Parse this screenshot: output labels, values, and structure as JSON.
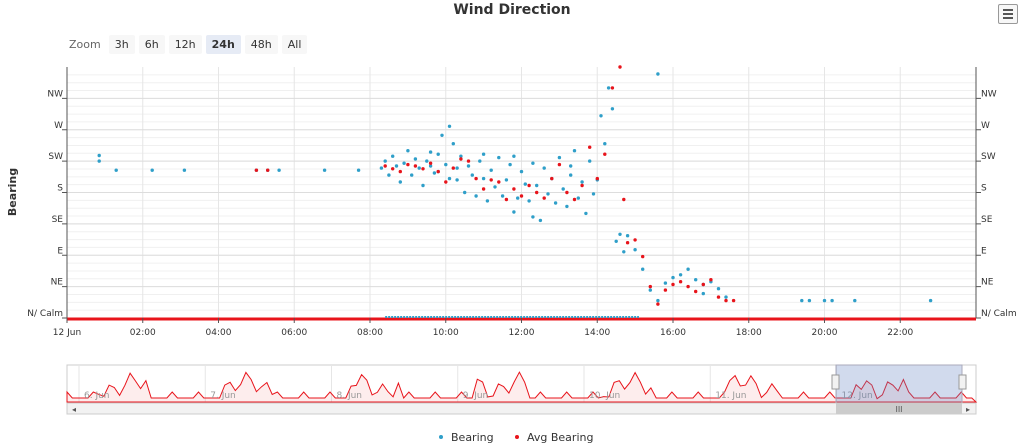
{
  "title": "Wind Direction",
  "menu_icon": "hamburger-menu-icon",
  "zoom": {
    "label": "Zoom",
    "buttons": [
      "3h",
      "6h",
      "12h",
      "24h",
      "48h",
      "All"
    ],
    "active": "24h"
  },
  "navigator": {
    "date_labels": [
      "6. Jun",
      "7. Jun",
      "8. Jun",
      "9. Jun",
      "10. Jun",
      "11. Jun",
      "12. Jun"
    ],
    "window": [
      "12 Jun 00:00",
      "12 Jun 24:00"
    ]
  },
  "colors": {
    "bearing": "#2f9fc9",
    "avg": "#e8141b",
    "plot_line": "#e8141b"
  },
  "chart_data": {
    "type": "scatter",
    "title": "Wind Direction",
    "ylabel": "Bearing",
    "xlabel": "",
    "x_unit": "hours",
    "x_range": [
      0,
      24
    ],
    "ylim": [
      0,
      360
    ],
    "x_ticks": [
      {
        "v": 0,
        "label": "12 Jun"
      },
      {
        "v": 2,
        "label": "02:00"
      },
      {
        "v": 4,
        "label": "04:00"
      },
      {
        "v": 6,
        "label": "06:00"
      },
      {
        "v": 8,
        "label": "08:00"
      },
      {
        "v": 10,
        "label": "10:00"
      },
      {
        "v": 12,
        "label": "12:00"
      },
      {
        "v": 14,
        "label": "14:00"
      },
      {
        "v": 16,
        "label": "16:00"
      },
      {
        "v": 18,
        "label": "18:00"
      },
      {
        "v": 20,
        "label": "20:00"
      },
      {
        "v": 22,
        "label": "22:00"
      }
    ],
    "y_ticks": [
      {
        "v": 0,
        "label": "N/ Calm"
      },
      {
        "v": 45,
        "label": "NE"
      },
      {
        "v": 90,
        "label": "E"
      },
      {
        "v": 135,
        "label": "SE"
      },
      {
        "v": 180,
        "label": "S"
      },
      {
        "v": 225,
        "label": "SW"
      },
      {
        "v": 270,
        "label": "W"
      },
      {
        "v": 315,
        "label": "NW"
      }
    ],
    "legend": {
      "position": "bottom-center"
    },
    "series": [
      {
        "name": "Bearing",
        "points": [
          [
            0.85,
            233
          ],
          [
            0.85,
            225
          ],
          [
            1.3,
            212
          ],
          [
            2.25,
            212
          ],
          [
            3.1,
            212
          ],
          [
            5.0,
            212
          ],
          [
            5.3,
            212
          ],
          [
            5.6,
            212
          ],
          [
            6.8,
            212
          ],
          [
            7.7,
            212
          ],
          [
            8.3,
            215
          ],
          [
            8.4,
            225
          ],
          [
            8.5,
            205
          ],
          [
            8.6,
            232
          ],
          [
            8.7,
            218
          ],
          [
            8.8,
            195
          ],
          [
            8.9,
            222
          ],
          [
            9.0,
            240
          ],
          [
            9.1,
            205
          ],
          [
            9.2,
            228
          ],
          [
            9.3,
            215
          ],
          [
            9.4,
            190
          ],
          [
            9.5,
            225
          ],
          [
            9.6,
            218
          ],
          [
            9.7,
            208
          ],
          [
            9.8,
            235
          ],
          [
            9.9,
            262
          ],
          [
            10.0,
            220
          ],
          [
            10.1,
            200
          ],
          [
            10.2,
            250
          ],
          [
            10.3,
            215
          ],
          [
            10.4,
            232
          ],
          [
            10.5,
            180
          ],
          [
            10.6,
            218
          ],
          [
            10.7,
            205
          ],
          [
            10.8,
            175
          ],
          [
            10.9,
            225
          ],
          [
            11.0,
            200
          ],
          [
            11.1,
            168
          ],
          [
            11.2,
            212
          ],
          [
            11.3,
            188
          ],
          [
            11.4,
            230
          ],
          [
            11.5,
            175
          ],
          [
            11.6,
            198
          ],
          [
            11.7,
            220
          ],
          [
            11.8,
            152
          ],
          [
            11.9,
            172
          ],
          [
            12.0,
            210
          ],
          [
            12.1,
            192
          ],
          [
            12.2,
            168
          ],
          [
            12.3,
            222
          ],
          [
            12.4,
            190
          ],
          [
            12.5,
            140
          ],
          [
            12.6,
            215
          ],
          [
            12.7,
            178
          ],
          [
            12.8,
            200
          ],
          [
            12.9,
            165
          ],
          [
            13.0,
            230
          ],
          [
            13.1,
            185
          ],
          [
            13.2,
            160
          ],
          [
            13.3,
            205
          ],
          [
            13.4,
            240
          ],
          [
            13.5,
            172
          ],
          [
            13.6,
            195
          ],
          [
            13.7,
            150
          ],
          [
            13.8,
            225
          ],
          [
            13.9,
            178
          ],
          [
            14.0,
            198
          ],
          [
            14.1,
            290
          ],
          [
            14.2,
            250
          ],
          [
            14.3,
            330
          ],
          [
            14.4,
            300
          ],
          [
            14.5,
            110
          ],
          [
            14.6,
            120
          ],
          [
            14.7,
            95
          ],
          [
            14.8,
            118
          ],
          [
            15.0,
            98
          ],
          [
            15.2,
            70
          ],
          [
            15.4,
            40
          ],
          [
            15.6,
            25
          ],
          [
            15.8,
            50
          ],
          [
            16.0,
            58
          ],
          [
            16.2,
            62
          ],
          [
            16.4,
            70
          ],
          [
            16.6,
            55
          ],
          [
            16.8,
            48
          ],
          [
            17.0,
            52
          ],
          [
            17.2,
            42
          ],
          [
            17.4,
            30
          ],
          [
            9.8,
            210
          ],
          [
            10.3,
            198
          ],
          [
            11.0,
            235
          ],
          [
            11.8,
            232
          ],
          [
            12.3,
            145
          ],
          [
            10.1,
            275
          ],
          [
            9.6,
            238
          ],
          [
            13.3,
            218
          ],
          [
            15.6,
            350
          ],
          [
            16.8,
            35
          ],
          [
            19.4,
            25
          ],
          [
            19.6,
            25
          ],
          [
            20.0,
            25
          ],
          [
            20.2,
            25
          ],
          [
            20.8,
            25
          ],
          [
            22.8,
            25
          ]
        ]
      },
      {
        "name": "Avg Bearing",
        "points": [
          [
            5.0,
            212
          ],
          [
            5.3,
            212
          ],
          [
            8.4,
            218
          ],
          [
            8.6,
            214
          ],
          [
            8.8,
            210
          ],
          [
            9.0,
            220
          ],
          [
            9.2,
            218
          ],
          [
            9.4,
            214
          ],
          [
            9.6,
            222
          ],
          [
            9.8,
            210
          ],
          [
            10.0,
            195
          ],
          [
            10.2,
            215
          ],
          [
            10.4,
            228
          ],
          [
            10.6,
            225
          ],
          [
            10.8,
            200
          ],
          [
            11.0,
            185
          ],
          [
            11.2,
            198
          ],
          [
            11.4,
            195
          ],
          [
            11.6,
            170
          ],
          [
            11.8,
            185
          ],
          [
            12.0,
            175
          ],
          [
            12.2,
            190
          ],
          [
            12.4,
            180
          ],
          [
            12.6,
            172
          ],
          [
            12.8,
            200
          ],
          [
            13.0,
            220
          ],
          [
            13.2,
            180
          ],
          [
            13.4,
            170
          ],
          [
            13.6,
            190
          ],
          [
            13.8,
            245
          ],
          [
            14.0,
            200
          ],
          [
            14.2,
            235
          ],
          [
            14.4,
            330
          ],
          [
            14.6,
            360
          ],
          [
            14.7,
            170
          ],
          [
            14.8,
            108
          ],
          [
            15.0,
            112
          ],
          [
            15.2,
            88
          ],
          [
            15.4,
            45
          ],
          [
            15.6,
            20
          ],
          [
            15.8,
            40
          ],
          [
            16.0,
            48
          ],
          [
            16.2,
            52
          ],
          [
            16.4,
            45
          ],
          [
            16.6,
            38
          ],
          [
            16.8,
            48
          ],
          [
            17.0,
            55
          ],
          [
            17.2,
            30
          ],
          [
            17.4,
            25
          ],
          [
            17.6,
            25
          ]
        ]
      }
    ]
  }
}
